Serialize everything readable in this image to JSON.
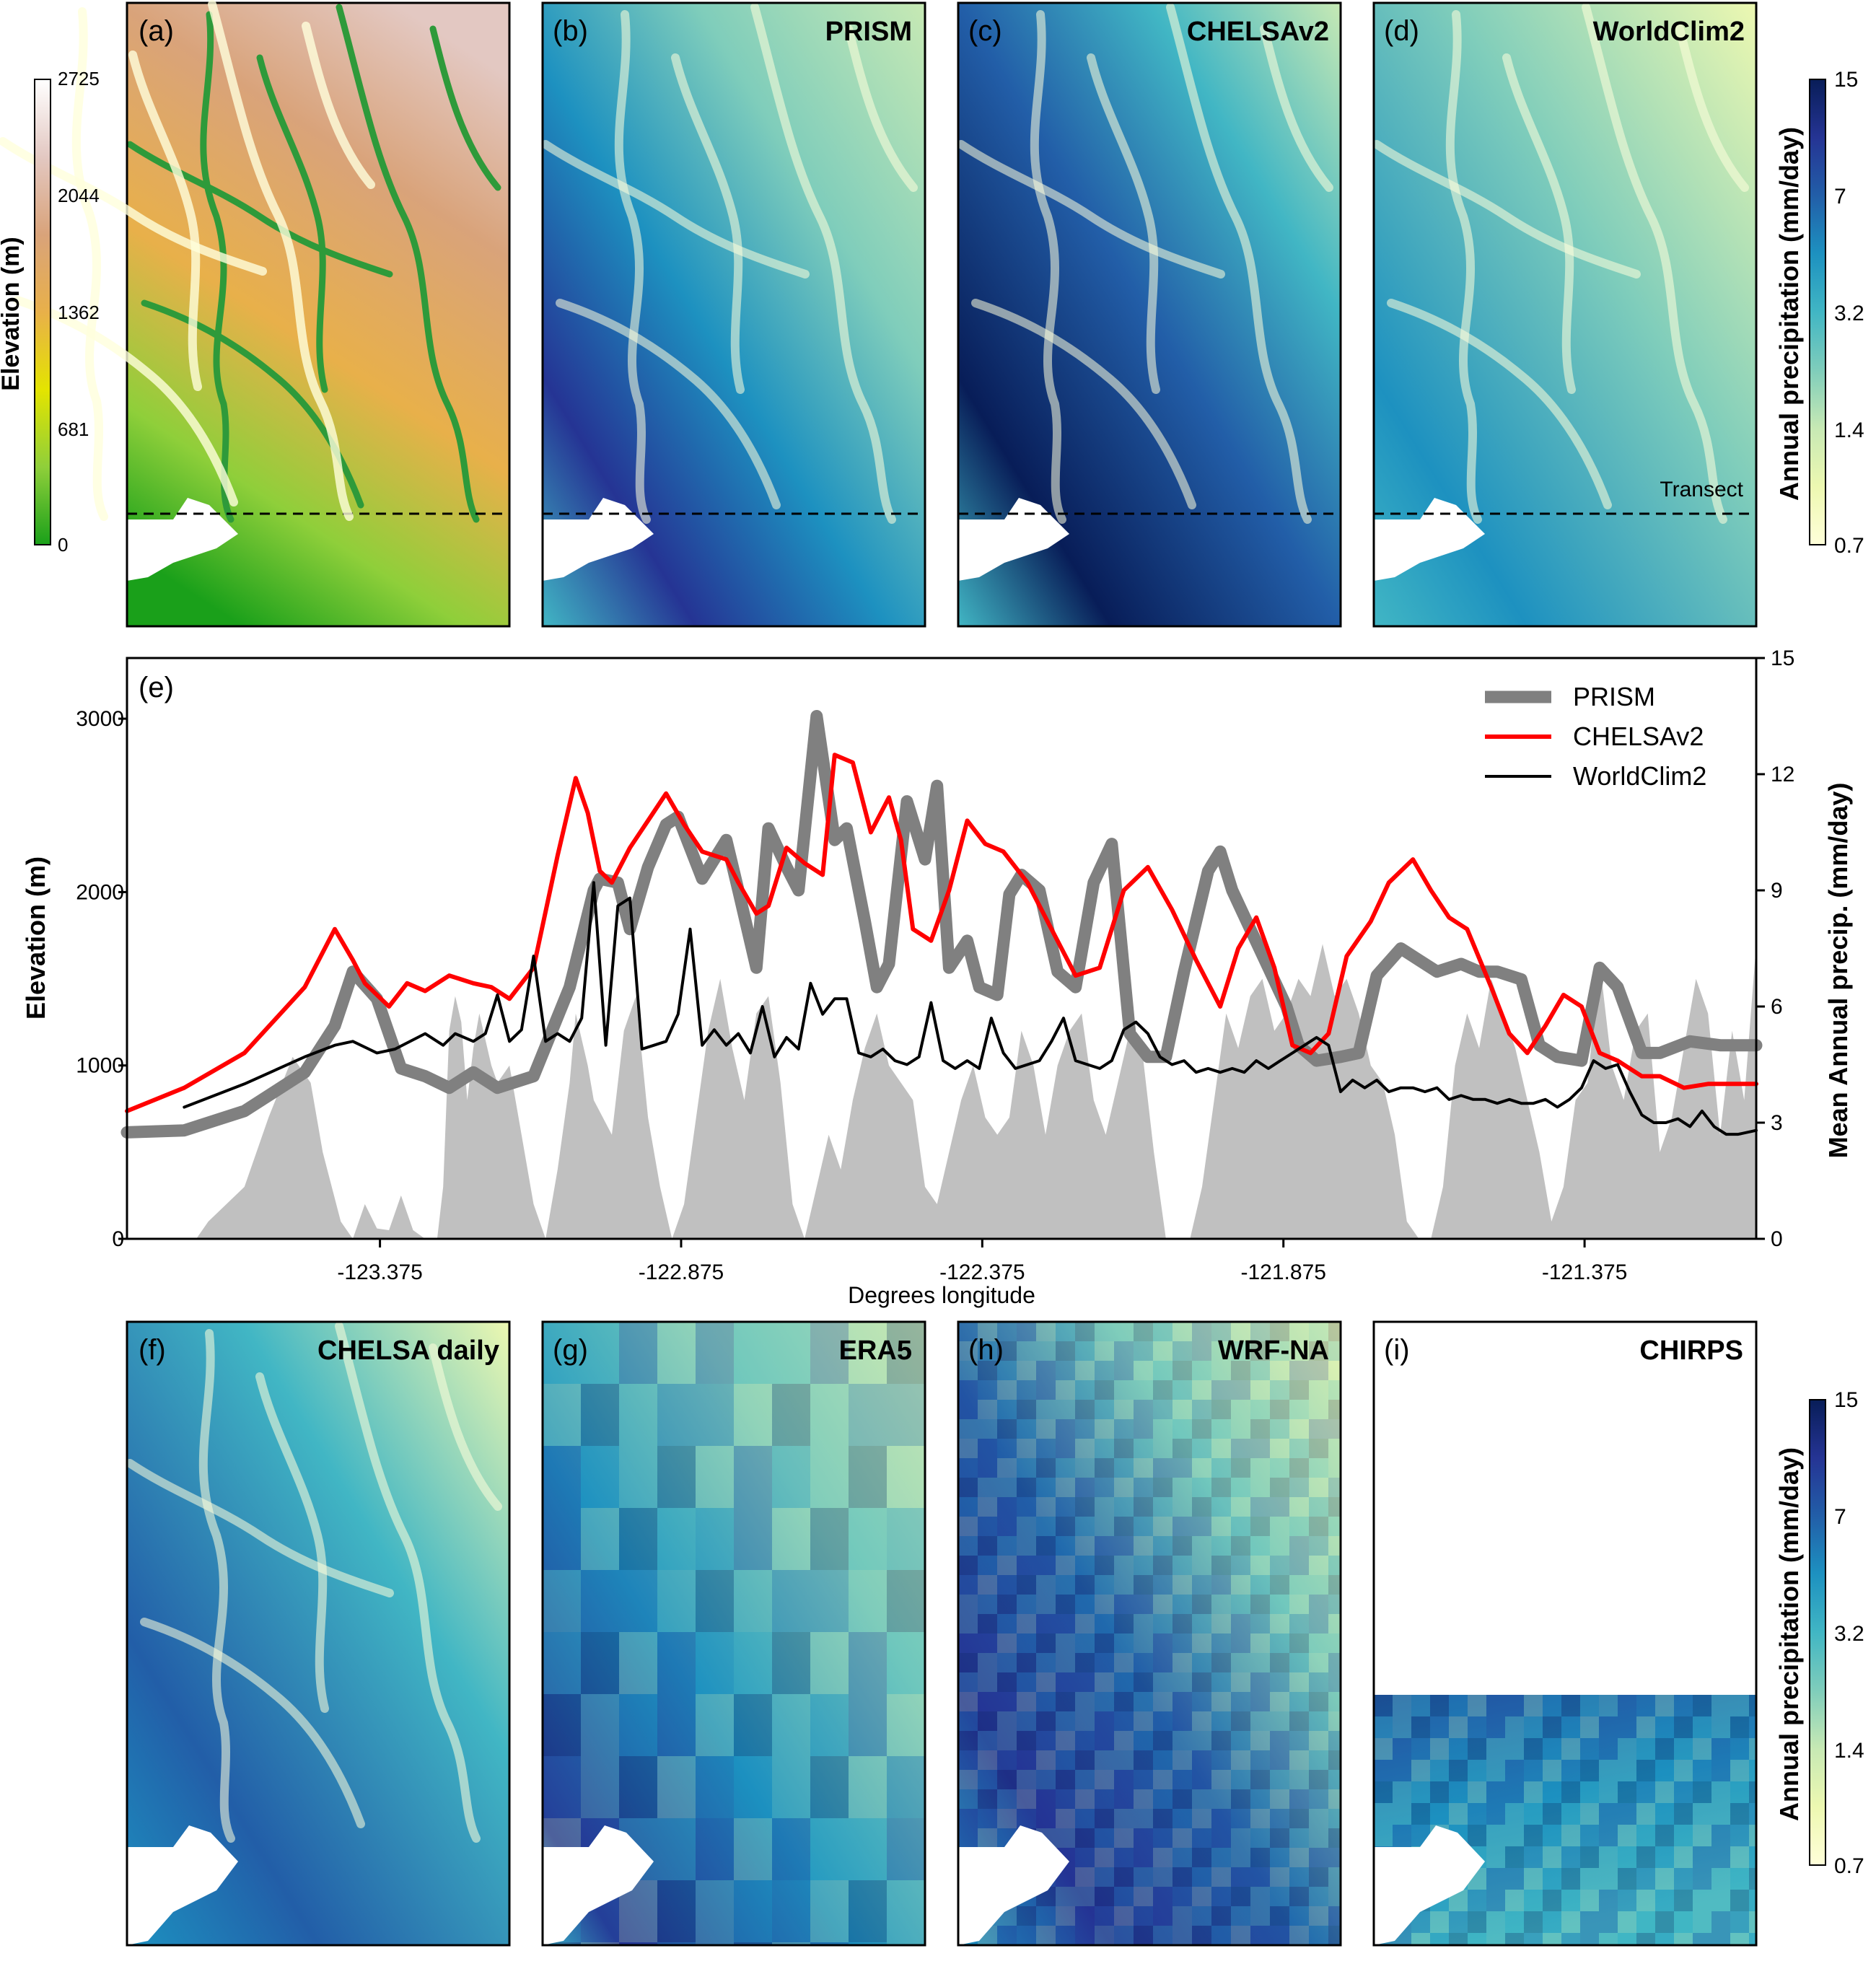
{
  "colors": {
    "precip_ramp": [
      "#ffffd9",
      "#edf8b1",
      "#c7e9b4",
      "#7fcdbb",
      "#41b6c4",
      "#1d91c0",
      "#225ea8",
      "#253494",
      "#081d58"
    ],
    "elev_ramp": [
      "#1aa01a",
      "#8fcf3a",
      "#e4e400",
      "#e8b04a",
      "#d9a37a",
      "#e3c8c2",
      "#ffffff"
    ],
    "prism": "#808080",
    "chelsa": "#ff0000",
    "worldclim": "#000000",
    "terrain": "#c0c0c0",
    "water": "#ffffff"
  },
  "maps": {
    "a": {
      "label": "(a)",
      "title": ""
    },
    "b": {
      "label": "(b)",
      "title": "PRISM"
    },
    "c": {
      "label": "(c)",
      "title": "CHELSAv2"
    },
    "d": {
      "label": "(d)",
      "title": "WorldClim2",
      "transect_label": "Transect"
    },
    "f": {
      "label": "(f)",
      "title": "CHELSA daily"
    },
    "g": {
      "label": "(g)",
      "title": "ERA5"
    },
    "h": {
      "label": "(h)",
      "title": "WRF-NA"
    },
    "i": {
      "label": "(i)",
      "title": "CHIRPS"
    }
  },
  "colorbars": {
    "elevation": {
      "title": "Elevation (m)",
      "ticks": [
        "2725",
        "2044",
        "1362",
        "681",
        "0"
      ]
    },
    "precip_top": {
      "title": "Annual precipitation (mm/day)",
      "ticks": [
        "15",
        "7",
        "3.2",
        "1.4",
        "0.7"
      ]
    },
    "precip_bottom": {
      "title": "Annual precipitation (mm/day)",
      "ticks": [
        "15",
        "7",
        "3.2",
        "1.4",
        "0.7"
      ]
    }
  },
  "chart_data": {
    "type": "line",
    "label": "(e)",
    "xlabel": "Degrees longitude",
    "ylabel": "Elevation (m)",
    "ylabel_right": "Mean Annual precip. (mm/day)",
    "xlim": [
      -123.795,
      -121.09
    ],
    "ylim": [
      0,
      3350
    ],
    "ylim_right": [
      0,
      15
    ],
    "xticks": [
      -123.375,
      -122.875,
      -122.375,
      -121.875,
      -121.375
    ],
    "xtick_labels": [
      "-123.375",
      "-122.875",
      "-122.375",
      "-121.875",
      "-121.375"
    ],
    "yticks": [
      0,
      1000,
      2000,
      3000
    ],
    "ytick_labels": [
      "0",
      "1000",
      "2000",
      "3000"
    ],
    "yticks_right": [
      0,
      3,
      6,
      9,
      12,
      15
    ],
    "ytick_labels_right": [
      "0",
      "3",
      "6",
      "9",
      "12",
      "15"
    ],
    "legend_position": "top-right",
    "elevation_profile": {
      "x": [
        -123.795,
        -123.68,
        -123.66,
        -123.6,
        -123.56,
        -123.52,
        -123.49,
        -123.47,
        -123.44,
        -123.42,
        -123.4,
        -123.38,
        -123.36,
        -123.34,
        -123.32,
        -123.3,
        -123.28,
        -123.27,
        -123.26,
        -123.25,
        -123.24,
        -123.23,
        -123.22,
        -123.21,
        -123.19,
        -123.18,
        -123.16,
        -123.14,
        -123.12,
        -123.1,
        -123.08,
        -123.06,
        -123.05,
        -123.03,
        -123.02,
        -122.99,
        -122.97,
        -122.95,
        -122.93,
        -122.91,
        -122.89,
        -122.87,
        -122.85,
        -122.83,
        -122.81,
        -122.79,
        -122.77,
        -122.75,
        -122.73,
        -122.71,
        -122.69,
        -122.67,
        -122.65,
        -122.63,
        -122.61,
        -122.59,
        -122.57,
        -122.55,
        -122.53,
        -122.51,
        -122.49,
        -122.47,
        -122.45,
        -122.43,
        -122.41,
        -122.39,
        -122.37,
        -122.35,
        -122.33,
        -122.31,
        -122.29,
        -122.27,
        -122.25,
        -122.23,
        -122.21,
        -122.19,
        -122.17,
        -122.15,
        -122.13,
        -122.11,
        -122.09,
        -122.07,
        -122.05,
        -122.03,
        -122.01,
        -121.99,
        -121.97,
        -121.95,
        -121.93,
        -121.91,
        -121.89,
        -121.87,
        -121.85,
        -121.83,
        -121.81,
        -121.79,
        -121.77,
        -121.75,
        -121.73,
        -121.71,
        -121.69,
        -121.67,
        -121.65,
        -121.63,
        -121.61,
        -121.59,
        -121.57,
        -121.55,
        -121.53,
        -121.51,
        -121.49,
        -121.47,
        -121.45,
        -121.43,
        -121.41,
        -121.39,
        -121.37,
        -121.35,
        -121.33,
        -121.31,
        -121.29,
        -121.27,
        -121.25,
        -121.23,
        -121.21,
        -121.19,
        -121.17,
        -121.15,
        -121.13,
        -121.11,
        -121.09
      ],
      "y": [
        0,
        0,
        100,
        300,
        700,
        1050,
        900,
        500,
        100,
        0,
        200,
        60,
        50,
        250,
        50,
        0,
        0,
        300,
        1200,
        1400,
        1250,
        800,
        1100,
        1300,
        1000,
        900,
        1000,
        600,
        200,
        0,
        400,
        900,
        1300,
        1000,
        800,
        600,
        1200,
        1400,
        700,
        300,
        0,
        200,
        700,
        1200,
        1500,
        1100,
        800,
        1300,
        1400,
        900,
        200,
        0,
        300,
        600,
        400,
        800,
        1100,
        1300,
        1000,
        900,
        800,
        300,
        200,
        500,
        800,
        1000,
        700,
        600,
        700,
        1200,
        1000,
        600,
        1000,
        1200,
        1300,
        800,
        600,
        900,
        1200,
        1100,
        500,
        0,
        0,
        0,
        300,
        800,
        1300,
        1100,
        1400,
        1500,
        1200,
        1300,
        1500,
        1400,
        1700,
        1400,
        1500,
        1300,
        1000,
        900,
        600,
        100,
        0,
        0,
        300,
        1000,
        1300,
        1100,
        1500,
        1300,
        1100,
        800,
        500,
        100,
        300,
        800,
        900,
        1600,
        1000,
        800,
        1200,
        1300,
        500,
        700,
        1100,
        1500,
        1300,
        600,
        1200,
        800,
        1700
      ]
    },
    "series": [
      {
        "name": "PRISM",
        "x": [
          -123.795,
          -123.7,
          -123.6,
          -123.5,
          -123.45,
          -123.42,
          -123.38,
          -123.34,
          -123.3,
          -123.26,
          -123.22,
          -123.18,
          -123.12,
          -123.06,
          -123.02,
          -123.01,
          -122.98,
          -122.96,
          -122.93,
          -122.9,
          -122.88,
          -122.84,
          -122.8,
          -122.78,
          -122.75,
          -122.73,
          -122.7,
          -122.68,
          -122.65,
          -122.62,
          -122.6,
          -122.57,
          -122.55,
          -122.53,
          -122.5,
          -122.47,
          -122.45,
          -122.43,
          -122.4,
          -122.38,
          -122.35,
          -122.33,
          -122.31,
          -122.28,
          -122.25,
          -122.22,
          -122.19,
          -122.16,
          -122.13,
          -122.1,
          -122.07,
          -122.04,
          -122.0,
          -121.98,
          -121.96,
          -121.93,
          -121.9,
          -121.87,
          -121.85,
          -121.82,
          -121.78,
          -121.75,
          -121.72,
          -121.68,
          -121.65,
          -121.62,
          -121.58,
          -121.55,
          -121.52,
          -121.48,
          -121.45,
          -121.42,
          -121.38,
          -121.35,
          -121.32,
          -121.28,
          -121.25,
          -121.2,
          -121.15,
          -121.09
        ],
        "y": [
          2.75,
          2.8,
          3.3,
          4.3,
          5.5,
          6.9,
          6.2,
          4.4,
          4.2,
          3.9,
          4.3,
          3.9,
          4.2,
          6.5,
          9.0,
          9.3,
          9.2,
          8.0,
          9.6,
          10.7,
          10.9,
          9.3,
          10.3,
          9.0,
          7.0,
          10.6,
          9.6,
          9.0,
          13.5,
          10.3,
          10.6,
          8.2,
          6.5,
          7.1,
          11.3,
          9.8,
          11.7,
          7.0,
          7.7,
          6.5,
          6.3,
          8.9,
          9.4,
          9.0,
          6.9,
          6.5,
          9.2,
          10.2,
          5.3,
          4.7,
          4.7,
          6.9,
          9.5,
          10.0,
          9.0,
          8.0,
          7.0,
          6.0,
          5.0,
          4.6,
          4.7,
          4.8,
          6.8,
          7.5,
          7.2,
          6.9,
          7.1,
          6.9,
          6.9,
          6.7,
          5.0,
          4.7,
          4.6,
          7.0,
          6.5,
          4.8,
          4.8,
          5.1,
          5.0,
          5.0
        ]
      },
      {
        "name": "CHELSAv2",
        "x": [
          -123.795,
          -123.7,
          -123.6,
          -123.5,
          -123.45,
          -123.42,
          -123.4,
          -123.36,
          -123.33,
          -123.3,
          -123.26,
          -123.22,
          -123.19,
          -123.16,
          -123.12,
          -123.08,
          -123.05,
          -123.03,
          -123.01,
          -122.99,
          -122.96,
          -122.93,
          -122.9,
          -122.87,
          -122.84,
          -122.8,
          -122.78,
          -122.75,
          -122.73,
          -122.7,
          -122.67,
          -122.64,
          -122.62,
          -122.59,
          -122.56,
          -122.53,
          -122.51,
          -122.49,
          -122.46,
          -122.43,
          -122.4,
          -122.37,
          -122.34,
          -122.3,
          -122.26,
          -122.22,
          -122.18,
          -122.14,
          -122.1,
          -122.06,
          -122.02,
          -121.98,
          -121.95,
          -121.92,
          -121.89,
          -121.86,
          -121.83,
          -121.8,
          -121.77,
          -121.73,
          -121.7,
          -121.66,
          -121.63,
          -121.6,
          -121.57,
          -121.53,
          -121.5,
          -121.47,
          -121.44,
          -121.41,
          -121.38,
          -121.35,
          -121.32,
          -121.28,
          -121.25,
          -121.21,
          -121.17,
          -121.13,
          -121.09
        ],
        "y": [
          3.3,
          3.9,
          4.8,
          6.5,
          8.0,
          7.2,
          6.6,
          6.0,
          6.6,
          6.4,
          6.8,
          6.6,
          6.5,
          6.2,
          7.0,
          9.9,
          11.9,
          11.0,
          9.5,
          9.2,
          10.1,
          10.8,
          11.5,
          10.7,
          10.0,
          9.8,
          9.2,
          8.4,
          8.6,
          10.1,
          9.7,
          9.4,
          12.5,
          12.3,
          10.5,
          11.4,
          10.3,
          8.0,
          7.7,
          9.0,
          10.8,
          10.2,
          10.0,
          9.2,
          8.0,
          6.8,
          7.0,
          9.0,
          9.6,
          8.5,
          7.2,
          6.0,
          7.5,
          8.3,
          7.0,
          5.0,
          4.8,
          5.3,
          7.3,
          8.2,
          9.2,
          9.8,
          9.0,
          8.3,
          8.0,
          6.5,
          5.3,
          4.8,
          5.5,
          6.3,
          6.0,
          4.8,
          4.6,
          4.2,
          4.2,
          3.9,
          4.0,
          4.0,
          4.0
        ]
      },
      {
        "name": "WorldClim2",
        "x": [
          -123.7,
          -123.6,
          -123.5,
          -123.45,
          -123.42,
          -123.38,
          -123.35,
          -123.3,
          -123.27,
          -123.25,
          -123.22,
          -123.2,
          -123.18,
          -123.16,
          -123.14,
          -123.12,
          -123.1,
          -123.08,
          -123.06,
          -123.04,
          -123.02,
          -123.0,
          -122.98,
          -122.96,
          -122.94,
          -122.92,
          -122.9,
          -122.88,
          -122.86,
          -122.84,
          -122.82,
          -122.8,
          -122.78,
          -122.76,
          -122.74,
          -122.72,
          -122.7,
          -122.68,
          -122.66,
          -122.64,
          -122.62,
          -122.6,
          -122.58,
          -122.56,
          -122.54,
          -122.52,
          -122.5,
          -122.48,
          -122.46,
          -122.44,
          -122.42,
          -122.4,
          -122.38,
          -122.36,
          -122.34,
          -122.32,
          -122.3,
          -122.28,
          -122.26,
          -122.24,
          -122.22,
          -122.2,
          -122.18,
          -122.16,
          -122.14,
          -122.12,
          -122.1,
          -122.08,
          -122.06,
          -122.04,
          -122.02,
          -122.0,
          -121.98,
          -121.96,
          -121.94,
          -121.92,
          -121.9,
          -121.88,
          -121.86,
          -121.84,
          -121.82,
          -121.8,
          -121.78,
          -121.76,
          -121.74,
          -121.72,
          -121.7,
          -121.68,
          -121.66,
          -121.64,
          -121.62,
          -121.6,
          -121.58,
          -121.56,
          -121.54,
          -121.52,
          -121.5,
          -121.48,
          -121.46,
          -121.44,
          -121.42,
          -121.4,
          -121.38,
          -121.36,
          -121.34,
          -121.32,
          -121.3,
          -121.28,
          -121.26,
          -121.24,
          -121.22,
          -121.2,
          -121.18,
          -121.16,
          -121.14,
          -121.12,
          -121.09
        ],
        "y": [
          3.4,
          4.0,
          4.7,
          5.0,
          5.1,
          4.8,
          4.9,
          5.3,
          5.0,
          5.3,
          5.1,
          5.3,
          6.3,
          5.1,
          5.4,
          7.3,
          5.1,
          5.3,
          5.1,
          5.7,
          9.2,
          5.0,
          8.6,
          8.8,
          4.9,
          5.0,
          5.1,
          5.8,
          8.0,
          5.0,
          5.4,
          5.0,
          5.3,
          4.8,
          6.0,
          4.7,
          5.2,
          4.9,
          6.6,
          5.8,
          6.2,
          6.2,
          4.8,
          4.7,
          4.9,
          4.6,
          4.5,
          4.7,
          6.1,
          4.6,
          4.4,
          4.6,
          4.4,
          5.7,
          4.8,
          4.4,
          4.5,
          4.6,
          5.1,
          5.7,
          4.6,
          4.5,
          4.4,
          4.6,
          5.4,
          5.6,
          5.3,
          4.7,
          4.5,
          4.6,
          4.3,
          4.4,
          4.3,
          4.4,
          4.3,
          4.6,
          4.4,
          4.6,
          4.8,
          5.0,
          5.2,
          5.0,
          3.8,
          4.1,
          3.9,
          4.1,
          3.8,
          3.9,
          3.9,
          3.8,
          3.9,
          3.6,
          3.7,
          3.6,
          3.6,
          3.5,
          3.6,
          3.5,
          3.5,
          3.6,
          3.4,
          3.6,
          3.9,
          4.6,
          4.4,
          4.5,
          3.8,
          3.2,
          3.0,
          3.0,
          3.1,
          2.9,
          3.3,
          2.9,
          2.7,
          2.7,
          2.8
        ]
      }
    ]
  }
}
